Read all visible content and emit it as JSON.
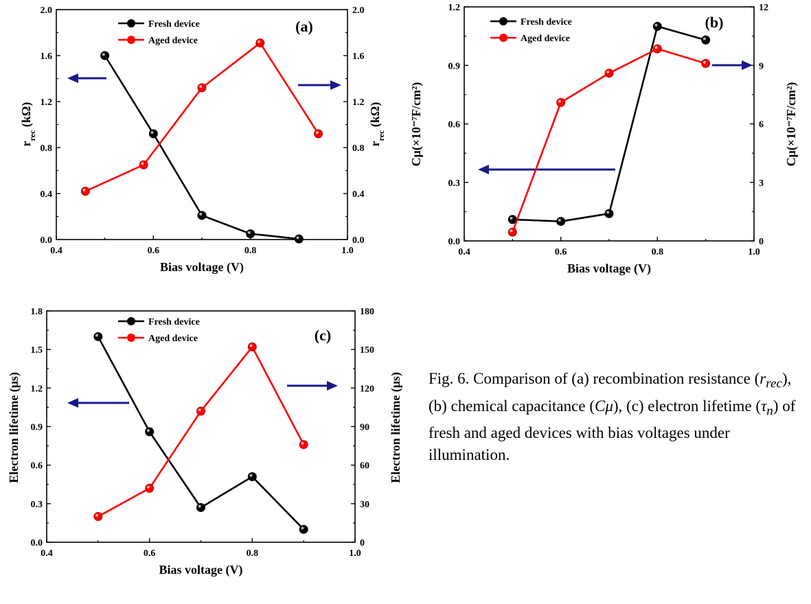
{
  "caption": {
    "lead": "Fig. 6. Comparison of (a) recombination resistance (",
    "rrec_r": "r",
    "rrec_sub": "rec",
    "mid1": "), (b) chemical capacitance (",
    "cmu": "Cμ",
    "mid2": "), (c) electron lifetime (",
    "tau": "τ",
    "tau_sub": "n",
    "tail": ") of fresh and aged devices with bias voltages under illumination."
  },
  "colors": {
    "fresh": "#000000",
    "aged": "#ff0000",
    "arrow": "#1a1a8c"
  },
  "chart_data": [
    {
      "type": "line",
      "panel_label": "(a)",
      "xlabel": "Bias voltage (V)",
      "ylabel_left": {
        "main": "r",
        "sub": "rec",
        "unit": " (kΩ)"
      },
      "ylabel_right": {
        "main": "r",
        "sub": "rec",
        "unit": " (kΩ)"
      },
      "xlim": [
        0.4,
        1.0
      ],
      "ylim_left": [
        0,
        2.0
      ],
      "ylim_right": [
        0,
        2.0
      ],
      "x_ticks": [
        "0.4",
        "0.6",
        "0.8",
        "1.0"
      ],
      "y_ticks_left": [
        "0.0",
        "0.4",
        "0.8",
        "1.2",
        "1.6",
        "2.0"
      ],
      "y_ticks_right": [
        "0.0",
        "0.4",
        "0.8",
        "1.2",
        "1.6",
        "2.0"
      ],
      "legend": "top-center",
      "series": [
        {
          "name": "Fresh device",
          "axis": "left",
          "color": "#000000",
          "x": [
            0.5,
            0.6,
            0.7,
            0.8,
            0.9
          ],
          "y": [
            1.6,
            0.92,
            0.21,
            0.05,
            0.005
          ]
        },
        {
          "name": "Aged device",
          "axis": "right",
          "color": "#ff0000",
          "x": [
            0.46,
            0.58,
            0.7,
            0.82,
            0.94
          ],
          "y": [
            0.42,
            0.65,
            1.32,
            1.71,
            0.92
          ]
        }
      ]
    },
    {
      "type": "line",
      "panel_label": "(b)",
      "xlabel": "Bias voltage (V)",
      "ylabel_left": {
        "main": "C",
        "sub": "",
        "unit": "μ(×10⁻⁷F/cm²)"
      },
      "ylabel_right": {
        "main": "C",
        "sub": "",
        "unit": "μ(×10⁻⁷F/cm²)"
      },
      "xlim": [
        0.4,
        1.0
      ],
      "ylim_left": [
        0,
        1.2
      ],
      "ylim_right": [
        0,
        12
      ],
      "x_ticks": [
        "0.4",
        "0.6",
        "0.8",
        "1.0"
      ],
      "y_ticks_left": [
        "0.0",
        "0.3",
        "0.6",
        "0.9",
        "1.2"
      ],
      "y_ticks_right": [
        "0",
        "3",
        "6",
        "9",
        "12"
      ],
      "legend": "top-left",
      "series": [
        {
          "name": "Fresh device",
          "axis": "left",
          "color": "#000000",
          "x": [
            0.5,
            0.6,
            0.7,
            0.8,
            0.9
          ],
          "y": [
            0.11,
            0.1,
            0.14,
            1.1,
            1.03
          ]
        },
        {
          "name": "Aged device",
          "axis": "right",
          "color": "#ff0000",
          "x": [
            0.5,
            0.6,
            0.7,
            0.8,
            0.9
          ],
          "y": [
            0.45,
            7.1,
            8.6,
            9.85,
            9.1
          ]
        }
      ]
    },
    {
      "type": "line",
      "panel_label": "(c)",
      "xlabel": "Bias voltage (V)",
      "ylabel_left": {
        "main": "Electron lifetime (μs)",
        "sub": "",
        "unit": ""
      },
      "ylabel_right": {
        "main": "Electron lifetime (μs)",
        "sub": "",
        "unit": ""
      },
      "xlim": [
        0.4,
        1.0
      ],
      "ylim_left": [
        0,
        1.8
      ],
      "ylim_right": [
        0,
        180
      ],
      "x_ticks": [
        "0.4",
        "0.6",
        "0.8",
        "1.0"
      ],
      "y_ticks_left": [
        "0.0",
        "0.3",
        "0.6",
        "0.9",
        "1.2",
        "1.5",
        "1.8"
      ],
      "y_ticks_right": [
        "0",
        "30",
        "60",
        "90",
        "120",
        "150",
        "180"
      ],
      "legend": "top-center",
      "series": [
        {
          "name": "Fresh device",
          "axis": "left",
          "color": "#000000",
          "x": [
            0.5,
            0.6,
            0.7,
            0.8,
            0.9
          ],
          "y": [
            1.6,
            0.86,
            0.27,
            0.51,
            0.1
          ]
        },
        {
          "name": "Aged device",
          "axis": "right",
          "color": "#ff0000",
          "x": [
            0.5,
            0.6,
            0.7,
            0.8,
            0.9
          ],
          "y": [
            20,
            42,
            102,
            152,
            76
          ]
        }
      ]
    }
  ]
}
